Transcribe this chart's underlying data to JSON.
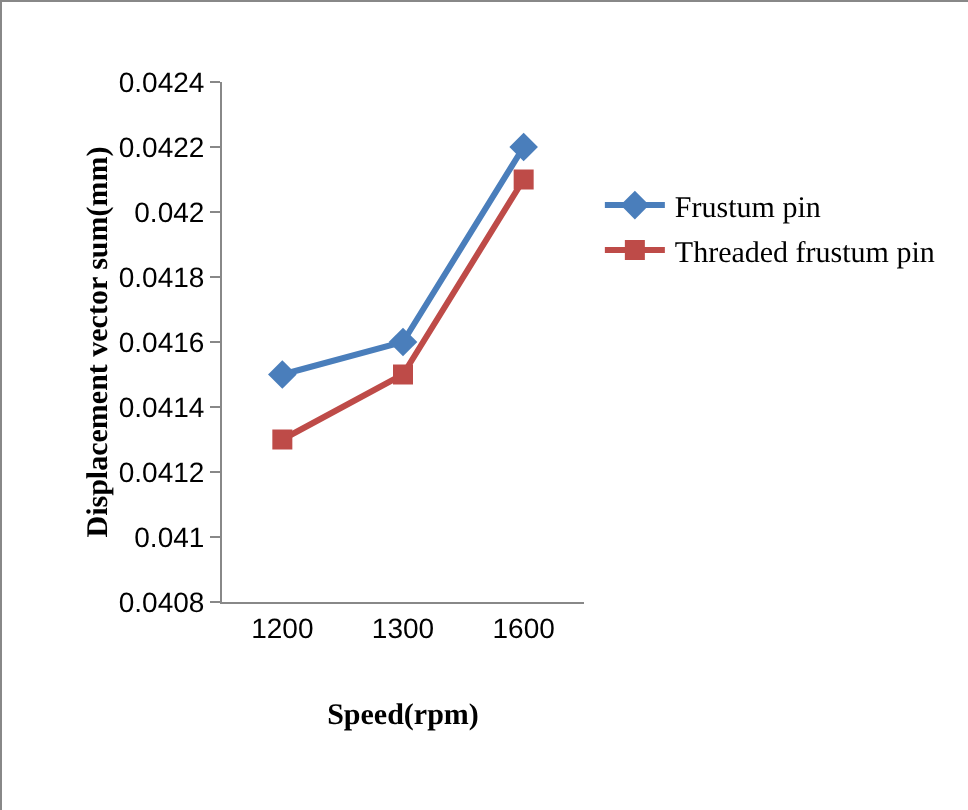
{
  "chart_data": {
    "type": "line",
    "xlabel": "Speed(rpm)",
    "ylabel": "Displacement vector sum(mm)",
    "categories": [
      "1200",
      "1300",
      "1600"
    ],
    "series": [
      {
        "name": "Frustum pin",
        "color": "#4a7ebb",
        "marker": "diamond",
        "values": [
          0.0415,
          0.0416,
          0.0422
        ]
      },
      {
        "name": "Threaded frustum pin",
        "color": "#be4b48",
        "marker": "square",
        "values": [
          0.0413,
          0.0415,
          0.0421
        ]
      }
    ],
    "ylim": [
      0.0408,
      0.0424
    ],
    "yticks": [
      0.0408,
      0.041,
      0.0412,
      0.0414,
      0.0416,
      0.0418,
      0.042,
      0.0422,
      0.0424
    ],
    "grid": false,
    "legend": "right",
    "line_style": "solid"
  }
}
